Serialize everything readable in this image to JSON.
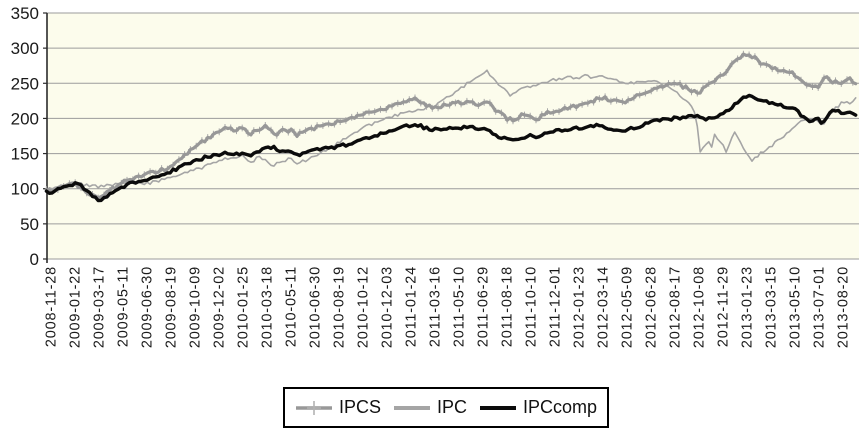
{
  "figure": {
    "kind": "line chart of three normalized stock index series",
    "background": "#FCFCEC"
  },
  "chart_data": {
    "type": "line",
    "title": "",
    "xlabel": "",
    "ylabel": "",
    "ylim": [
      0,
      350
    ],
    "y_ticks": [
      0,
      50,
      100,
      150,
      200,
      250,
      300,
      350
    ],
    "grid": "horizontal",
    "legend_position": "bottom-center",
    "plot_bg": "#FCFCEC",
    "gridline_color": "#9b9b9b",
    "axis_color": "#2b2b2b",
    "text_color": "#1a1a1a",
    "marker_color": "#a8a8a8",
    "x_tick_labels": [
      "2008-11-28",
      "2009-01-22",
      "2009-03-17",
      "2009-05-11",
      "2009-06-30",
      "2009-08-19",
      "2009-10-09",
      "2009-12-02",
      "2010-01-25",
      "2010-03-18",
      "2010-05-11",
      "2010-06-30",
      "2010-08-19",
      "2010-10-12",
      "2010-12-03",
      "2011-01-24",
      "2011-03-16",
      "2011-05-10",
      "2011-06-29",
      "2011-08-18",
      "2011-10-10",
      "2011-12-01",
      "2012-01-23",
      "2012-03-14",
      "2012-05-09",
      "2012-06-28",
      "2012-08-17",
      "2012-10-08",
      "2012-11-29",
      "2013-01-23",
      "2013-03-15",
      "2013-05-10",
      "2013-07-01",
      "2013-08-20"
    ],
    "series": [
      {
        "name": "IPCS",
        "color": "#989898",
        "style": "line-with-plus-markers",
        "stroke_width": 3.2,
        "points": [
          [
            -0.15,
            96
          ],
          [
            0,
            97
          ],
          [
            0.5,
            103
          ],
          [
            1,
            107
          ],
          [
            1.5,
            96
          ],
          [
            2,
            88
          ],
          [
            2.5,
            97
          ],
          [
            3,
            109
          ],
          [
            3.5,
            115
          ],
          [
            4,
            120
          ],
          [
            4.5,
            124
          ],
          [
            5,
            131
          ],
          [
            5.5,
            145
          ],
          [
            6,
            158
          ],
          [
            6.5,
            170
          ],
          [
            7,
            182
          ],
          [
            7.3,
            188
          ],
          [
            7.6,
            184
          ],
          [
            8,
            187
          ],
          [
            8.3,
            176
          ],
          [
            8.6,
            183
          ],
          [
            9,
            190
          ],
          [
            9.4,
            178
          ],
          [
            9.7,
            183
          ],
          [
            10,
            183
          ],
          [
            10.3,
            177
          ],
          [
            10.6,
            182
          ],
          [
            11,
            186
          ],
          [
            11.5,
            190
          ],
          [
            12,
            195
          ],
          [
            12.5,
            200
          ],
          [
            13,
            206
          ],
          [
            13.5,
            210
          ],
          [
            14,
            214
          ],
          [
            14.5,
            220
          ],
          [
            15,
            225
          ],
          [
            15.2,
            228
          ],
          [
            15.6,
            220
          ],
          [
            16,
            216
          ],
          [
            16.5,
            218
          ],
          [
            17,
            222
          ],
          [
            17.5,
            224
          ],
          [
            18,
            220
          ],
          [
            18.3,
            222
          ],
          [
            18.6,
            210
          ],
          [
            19,
            201
          ],
          [
            19.3,
            196
          ],
          [
            19.6,
            204
          ],
          [
            20,
            205
          ],
          [
            20.3,
            199
          ],
          [
            20.6,
            206
          ],
          [
            21,
            210
          ],
          [
            21.5,
            214
          ],
          [
            22,
            219
          ],
          [
            22.5,
            224
          ],
          [
            23,
            230
          ],
          [
            23.4,
            226
          ],
          [
            23.7,
            222
          ],
          [
            24,
            225
          ],
          [
            24.5,
            232
          ],
          [
            25,
            240
          ],
          [
            25.5,
            246
          ],
          [
            26,
            252
          ],
          [
            26.5,
            243
          ],
          [
            27,
            235
          ],
          [
            27.5,
            250
          ],
          [
            28,
            262
          ],
          [
            28.5,
            278
          ],
          [
            29,
            292
          ],
          [
            29.3,
            287
          ],
          [
            29.6,
            280
          ],
          [
            30,
            274
          ],
          [
            30.5,
            268
          ],
          [
            31,
            263
          ],
          [
            31.4,
            252
          ],
          [
            31.7,
            244
          ],
          [
            32,
            245
          ],
          [
            32.3,
            258
          ],
          [
            32.6,
            252
          ],
          [
            33,
            252
          ],
          [
            33.3,
            256
          ],
          [
            33.6,
            250
          ]
        ]
      },
      {
        "name": "IPC",
        "color": "#a5a5a5",
        "style": "thin-line",
        "stroke_width": 1.6,
        "points": [
          [
            -0.15,
            98
          ],
          [
            0,
            100
          ],
          [
            0.5,
            106
          ],
          [
            1,
            110
          ],
          [
            1.5,
            105
          ],
          [
            2,
            103
          ],
          [
            2.5,
            105
          ],
          [
            3,
            108
          ],
          [
            3.5,
            107
          ],
          [
            4,
            107
          ],
          [
            4.5,
            111
          ],
          [
            5,
            116
          ],
          [
            5.5,
            121
          ],
          [
            6,
            126
          ],
          [
            6.5,
            132
          ],
          [
            7,
            140
          ],
          [
            7.5,
            144
          ],
          [
            8,
            147
          ],
          [
            8.4,
            138
          ],
          [
            8.7,
            145
          ],
          [
            9,
            140
          ],
          [
            9.3,
            133
          ],
          [
            9.6,
            140
          ],
          [
            10,
            142
          ],
          [
            10.3,
            137
          ],
          [
            10.7,
            140
          ],
          [
            11,
            147
          ],
          [
            11.5,
            155
          ],
          [
            12,
            165
          ],
          [
            12.5,
            175
          ],
          [
            13,
            186
          ],
          [
            13.5,
            193
          ],
          [
            14,
            200
          ],
          [
            14.5,
            205
          ],
          [
            15,
            210
          ],
          [
            15.5,
            214
          ],
          [
            16,
            218
          ],
          [
            16.5,
            228
          ],
          [
            17,
            240
          ],
          [
            17.5,
            252
          ],
          [
            18,
            262
          ],
          [
            18.2,
            267
          ],
          [
            18.5,
            255
          ],
          [
            19,
            238
          ],
          [
            19.2,
            232
          ],
          [
            19.5,
            240
          ],
          [
            20,
            245
          ],
          [
            20.5,
            250
          ],
          [
            21,
            255
          ],
          [
            21.5,
            258
          ],
          [
            22,
            257
          ],
          [
            22.3,
            262
          ],
          [
            22.6,
            258
          ],
          [
            23,
            262
          ],
          [
            23.5,
            255
          ],
          [
            24,
            250
          ],
          [
            24.5,
            252
          ],
          [
            25,
            255
          ],
          [
            25.5,
            248
          ],
          [
            26,
            240
          ],
          [
            26.5,
            226
          ],
          [
            26.8,
            212
          ],
          [
            26.95,
            203
          ],
          [
            27.05,
            140
          ],
          [
            27.15,
            170
          ],
          [
            27.25,
            148
          ],
          [
            27.4,
            173
          ],
          [
            27.55,
            158
          ],
          [
            27.7,
            178
          ],
          [
            27.85,
            168
          ],
          [
            28,
            165
          ],
          [
            28.15,
            150
          ],
          [
            28.3,
            162
          ],
          [
            28.5,
            182
          ],
          [
            28.7,
            172
          ],
          [
            28.85,
            160
          ],
          [
            29,
            152
          ],
          [
            29.2,
            140
          ],
          [
            29.4,
            144
          ],
          [
            29.6,
            150
          ],
          [
            30,
            160
          ],
          [
            30.5,
            172
          ],
          [
            31,
            186
          ],
          [
            31.3,
            196
          ],
          [
            31.6,
            200
          ],
          [
            32,
            196
          ],
          [
            32.2,
            190
          ],
          [
            32.5,
            208
          ],
          [
            32.8,
            216
          ],
          [
            33,
            225
          ],
          [
            33.3,
            222
          ],
          [
            33.6,
            228
          ]
        ]
      },
      {
        "name": "IPCcomp",
        "color": "#0b0b0b",
        "style": "thick-line",
        "stroke_width": 3.4,
        "points": [
          [
            -0.15,
            95
          ],
          [
            0,
            93
          ],
          [
            0.3,
            100
          ],
          [
            0.6,
            104
          ],
          [
            1,
            106
          ],
          [
            1.2,
            109
          ],
          [
            1.5,
            97
          ],
          [
            2,
            83
          ],
          [
            2.3,
            88
          ],
          [
            2.6,
            95
          ],
          [
            3,
            101
          ],
          [
            3.3,
            108
          ],
          [
            3.6,
            110
          ],
          [
            4,
            112
          ],
          [
            4.5,
            117
          ],
          [
            5,
            124
          ],
          [
            5.5,
            132
          ],
          [
            6,
            139
          ],
          [
            6.5,
            145
          ],
          [
            7,
            148
          ],
          [
            7.3,
            151
          ],
          [
            7.6,
            148
          ],
          [
            8,
            150
          ],
          [
            8.3,
            146
          ],
          [
            8.6,
            152
          ],
          [
            9,
            157
          ],
          [
            9.3,
            160
          ],
          [
            9.6,
            153
          ],
          [
            10,
            152
          ],
          [
            10.4,
            149
          ],
          [
            10.7,
            152
          ],
          [
            11,
            155
          ],
          [
            11.5,
            157
          ],
          [
            12,
            160
          ],
          [
            12.5,
            164
          ],
          [
            13,
            169
          ],
          [
            13.5,
            175
          ],
          [
            14,
            180
          ],
          [
            14.5,
            186
          ],
          [
            15,
            190
          ],
          [
            15.3,
            191
          ],
          [
            15.6,
            187
          ],
          [
            16,
            184
          ],
          [
            16.5,
            186
          ],
          [
            17,
            186
          ],
          [
            17.3,
            188
          ],
          [
            17.6,
            187
          ],
          [
            18,
            185
          ],
          [
            18.4,
            180
          ],
          [
            18.7,
            174
          ],
          [
            19,
            172
          ],
          [
            19.3,
            168
          ],
          [
            19.6,
            172
          ],
          [
            20,
            176
          ],
          [
            20.3,
            173
          ],
          [
            20.6,
            179
          ],
          [
            21,
            183
          ],
          [
            21.5,
            184
          ],
          [
            22,
            186
          ],
          [
            22.5,
            189
          ],
          [
            23,
            190
          ],
          [
            23.3,
            186
          ],
          [
            23.6,
            182
          ],
          [
            24,
            184
          ],
          [
            24.5,
            188
          ],
          [
            25,
            195
          ],
          [
            25.5,
            198
          ],
          [
            26,
            200
          ],
          [
            26.5,
            202
          ],
          [
            27,
            203
          ],
          [
            27.3,
            199
          ],
          [
            27.6,
            202
          ],
          [
            28,
            205
          ],
          [
            28.5,
            218
          ],
          [
            29,
            232
          ],
          [
            29.2,
            234
          ],
          [
            29.5,
            228
          ],
          [
            30,
            222
          ],
          [
            30.5,
            218
          ],
          [
            31,
            214
          ],
          [
            31.3,
            205
          ],
          [
            31.6,
            196
          ],
          [
            32,
            200
          ],
          [
            32.2,
            192
          ],
          [
            32.5,
            208
          ],
          [
            32.8,
            214
          ],
          [
            33,
            207
          ],
          [
            33.3,
            210
          ],
          [
            33.6,
            204
          ]
        ]
      }
    ]
  },
  "legend": {
    "border_color": "#000000",
    "background": "#ffffff"
  }
}
